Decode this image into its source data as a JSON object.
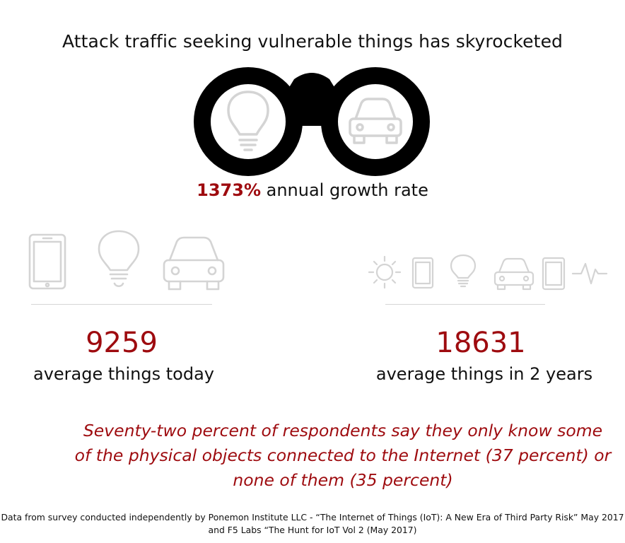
{
  "title": "Attack traffic seeking vulnerable things has skyrocketed",
  "growth": {
    "percent": "1373%",
    "label": " annual growth rate"
  },
  "stats": {
    "today": {
      "value": "9259",
      "label": "average things today"
    },
    "future": {
      "value": "18631",
      "label": "average things in 2 years"
    }
  },
  "quote": {
    "line1": "Seventy-two percent of respondents say they only know some",
    "line2": "of the physical objects connected to the Internet (37 percent) or",
    "line3": "none of them (35 percent)"
  },
  "source": {
    "line1": "Data from survey conducted independently by Ponemon Institute LLC - “The Internet of Things (IoT): A New Era of Third Party Risk” May 2017",
    "line2": "and F5 Labs “The Hunt for IoT Vol 2 (May 2017)"
  },
  "colors": {
    "accent": "#9e0b0f",
    "text": "#111111",
    "icon": "#d4d4d4",
    "binoculars": "#000000"
  },
  "icons": {
    "binoculars": [
      "lightbulb-icon",
      "car-icon"
    ],
    "left_row": [
      "tablet-icon",
      "lightbulb-icon",
      "car-icon"
    ],
    "right_row": [
      "sun-icon",
      "tablet-icon",
      "lightbulb-icon",
      "car-icon",
      "tablet-icon",
      "heartbeat-icon"
    ]
  }
}
